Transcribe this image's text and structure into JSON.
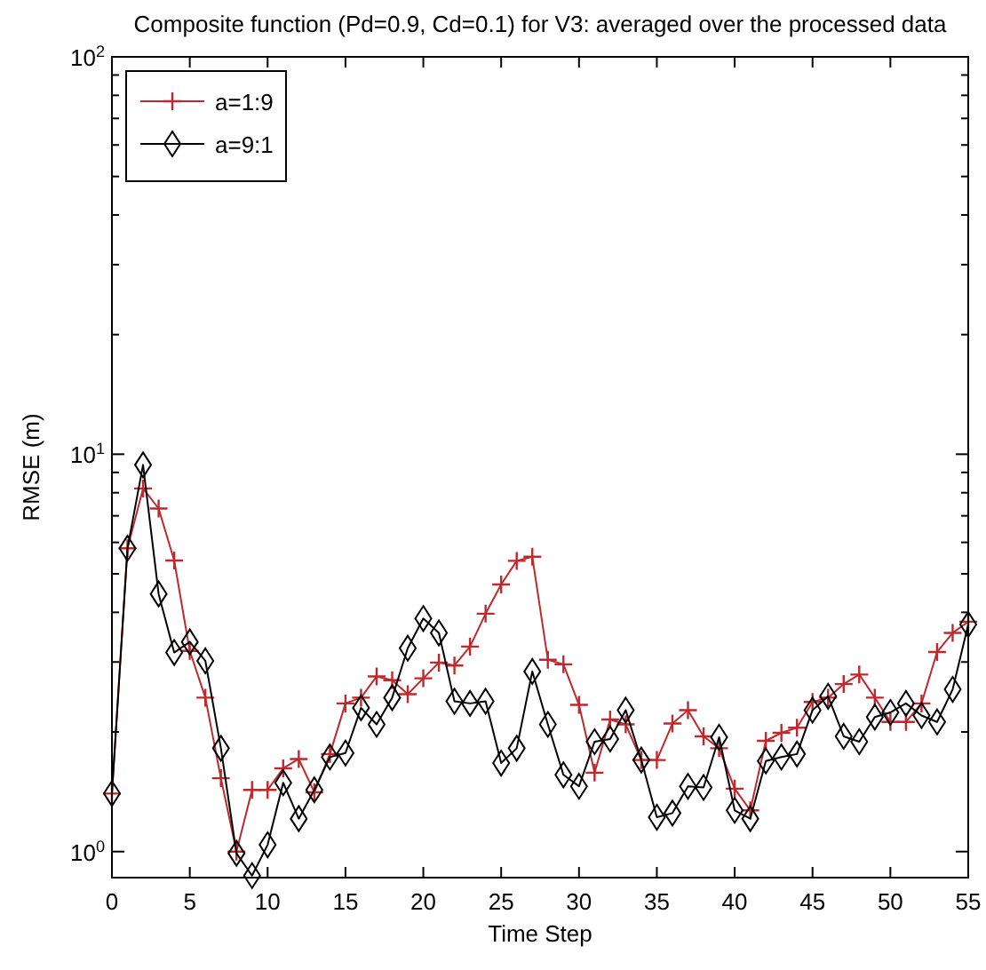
{
  "chart_data": {
    "type": "line",
    "title": "Composite function (Pd=0.9, Cd=0.1) for V3: averaged over the processed data",
    "xlabel": "Time Step",
    "ylabel": "RMSE (m)",
    "log": "y",
    "xlim": [
      0,
      55
    ],
    "xticks": [
      0,
      5,
      10,
      15,
      20,
      25,
      30,
      35,
      40,
      45,
      50,
      55
    ],
    "ylim": [
      0.86,
      100
    ],
    "yticks": [
      {
        "value": 1,
        "label": "10$^{0}$"
      },
      {
        "value": 2,
        "label": null
      },
      {
        "value": 3,
        "label": null
      },
      {
        "value": 4,
        "label": null
      },
      {
        "value": 5,
        "label": null
      },
      {
        "value": 6,
        "label": null
      },
      {
        "value": 7,
        "label": null
      },
      {
        "value": 8,
        "label": null
      },
      {
        "value": 9,
        "label": null
      },
      {
        "value": 10,
        "label": "10$^{1}$"
      },
      {
        "value": 20,
        "label": null
      },
      {
        "value": 30,
        "label": null
      },
      {
        "value": 40,
        "label": null
      },
      {
        "value": 50,
        "label": null
      },
      {
        "value": 60,
        "label": null
      },
      {
        "value": 70,
        "label": null
      },
      {
        "value": 80,
        "label": null
      },
      {
        "value": 90,
        "label": null
      },
      {
        "value": 100,
        "label": "10$^{2}$"
      }
    ],
    "x": [
      0,
      1,
      2,
      3,
      4,
      5,
      6,
      7,
      8,
      9,
      10,
      11,
      12,
      13,
      14,
      15,
      16,
      17,
      18,
      19,
      20,
      21,
      22,
      23,
      24,
      25,
      26,
      27,
      28,
      29,
      30,
      31,
      32,
      33,
      34,
      35,
      36,
      37,
      38,
      39,
      40,
      41,
      42,
      43,
      44,
      45,
      46,
      47,
      48,
      49,
      50,
      51,
      52,
      53,
      54,
      55
    ],
    "legend": "top left",
    "grid": false,
    "series": [
      {
        "name": "a=1:9",
        "color": "#c0282d",
        "marker": "cross",
        "values": [
          1.4,
          5.8,
          8.2,
          7.3,
          5.4,
          3.2,
          2.44,
          1.53,
          1.0,
          1.43,
          1.43,
          1.62,
          1.71,
          1.41,
          1.76,
          2.36,
          2.44,
          2.76,
          2.7,
          2.49,
          2.73,
          2.99,
          2.94,
          3.28,
          3.97,
          4.7,
          5.39,
          5.52,
          3.04,
          2.96,
          2.34,
          1.58,
          2.15,
          2.09,
          1.7,
          1.7,
          2.1,
          2.27,
          1.95,
          1.82,
          1.44,
          1.27,
          1.9,
          1.99,
          2.05,
          2.38,
          2.44,
          2.64,
          2.79,
          2.44,
          2.12,
          2.12,
          2.36,
          3.18,
          3.55,
          3.79
        ]
      },
      {
        "name": "a=9:1",
        "color": "#000000",
        "marker": "diamond",
        "values": [
          1.4,
          5.8,
          9.4,
          4.45,
          3.17,
          3.37,
          3.02,
          1.82,
          0.99,
          0.87,
          1.04,
          1.49,
          1.21,
          1.43,
          1.73,
          1.77,
          2.3,
          2.09,
          2.44,
          3.25,
          3.86,
          3.55,
          2.39,
          2.36,
          2.39,
          1.67,
          1.82,
          2.84,
          2.09,
          1.56,
          1.46,
          1.89,
          1.92,
          2.27,
          1.7,
          1.22,
          1.25,
          1.46,
          1.45,
          1.94,
          1.27,
          1.21,
          1.69,
          1.73,
          1.76,
          2.27,
          2.46,
          1.95,
          1.89,
          2.18,
          2.24,
          2.36,
          2.2,
          2.12,
          2.56,
          3.73
        ]
      }
    ]
  }
}
